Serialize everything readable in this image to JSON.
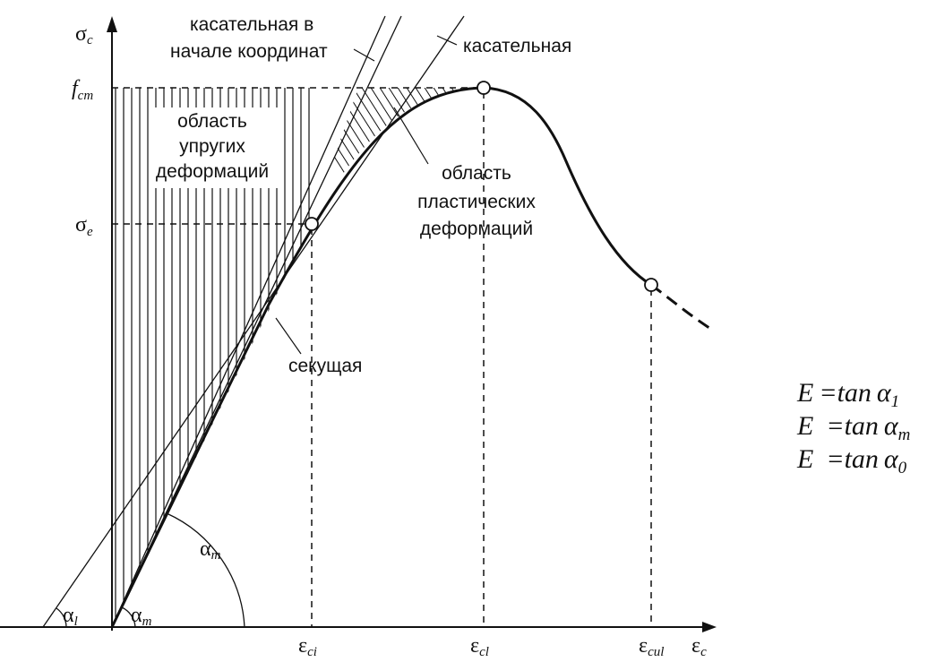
{
  "axes": {
    "y_symbol": "σ",
    "y_subscript": "c",
    "x_symbol": "ε",
    "x_subscript": "c"
  },
  "y_ticks": [
    {
      "symbol": "f",
      "subscript": "cm"
    },
    {
      "symbol": "σ",
      "subscript": "e"
    }
  ],
  "x_ticks": [
    {
      "symbol": "ε",
      "subscript": "ci"
    },
    {
      "symbol": "ε",
      "subscript": "cl"
    },
    {
      "symbol": "ε",
      "subscript": "cul"
    }
  ],
  "labels": {
    "tangent_origin": [
      "касательная в",
      "начале координат"
    ],
    "tangent": "касательная",
    "elastic_region": [
      "область",
      "упругих",
      "деформаций"
    ],
    "plastic_region": [
      "область",
      "пластических",
      "деформаций"
    ],
    "secant": "секущая"
  },
  "angles": {
    "alpha_l": {
      "symbol": "α",
      "subscript": "l"
    },
    "alpha_m_small": {
      "symbol": "α",
      "subscript": "m"
    },
    "alpha_m_large": {
      "symbol": "α",
      "subscript": "m"
    }
  },
  "equations": [
    {
      "lhs": "E",
      "rhs_func": "=tan",
      "greek": "α",
      "subscript": "1"
    },
    {
      "lhs": "E",
      "rhs_func": "=tan",
      "greek": "α",
      "subscript": "m"
    },
    {
      "lhs": "E",
      "rhs_func": "=tan",
      "greek": "α",
      "subscript": "0"
    }
  ],
  "colors": {
    "ink": "#111111",
    "background": "#ffffff"
  }
}
